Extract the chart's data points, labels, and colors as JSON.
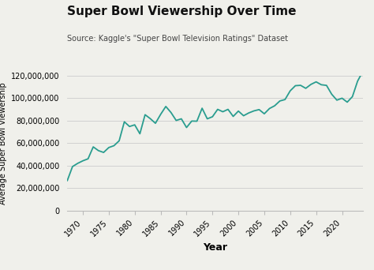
{
  "title": "Super Bowl Viewership Over Time",
  "subtitle": "Source: Kaggle's \"Super Bowl Television Ratings\" Dataset",
  "xlabel": "Year",
  "ylabel": "Average Super Bowl Viewership",
  "line_color": "#2a9d8f",
  "background_color": "#f0f0eb",
  "years": [
    1967,
    1968,
    1969,
    1970,
    1971,
    1972,
    1973,
    1974,
    1975,
    1976,
    1977,
    1978,
    1979,
    1980,
    1981,
    1982,
    1983,
    1984,
    1985,
    1986,
    1987,
    1988,
    1989,
    1990,
    1991,
    1992,
    1993,
    1994,
    1995,
    1996,
    1997,
    1998,
    1999,
    2000,
    2001,
    2002,
    2003,
    2004,
    2005,
    2006,
    2007,
    2008,
    2009,
    2010,
    2011,
    2012,
    2013,
    2014,
    2015,
    2016,
    2017,
    2018,
    2019,
    2020,
    2021,
    2022,
    2023,
    2024
  ],
  "viewership": [
    26750000,
    39130000,
    42000000,
    44270000,
    46040000,
    56640000,
    53320000,
    51700000,
    56050000,
    57710000,
    62050000,
    78940000,
    74760000,
    76240000,
    68290000,
    85240000,
    81770000,
    77620000,
    85530000,
    92570000,
    87190000,
    80140000,
    81590000,
    73852000,
    79590000,
    79476000,
    90990000,
    81590000,
    83420000,
    90000000,
    87870000,
    90000000,
    83720000,
    88465000,
    84335000,
    86801000,
    88637000,
    89795000,
    86072000,
    90745000,
    93184000,
    97448000,
    98732000,
    106476000,
    111041000,
    111346000,
    108693000,
    112191000,
    114442000,
    111864000,
    111319000,
    103470000,
    98190000,
    99900000,
    96400000,
    101300000,
    115100000,
    123700000
  ],
  "xticks": [
    1970,
    1975,
    1980,
    1985,
    1990,
    1995,
    2000,
    2005,
    2010,
    2015,
    2020
  ],
  "yticks": [
    0,
    20000000,
    40000000,
    60000000,
    80000000,
    100000000,
    120000000
  ],
  "xlim": [
    1967,
    2024
  ],
  "ylim": [
    0,
    120000000
  ]
}
